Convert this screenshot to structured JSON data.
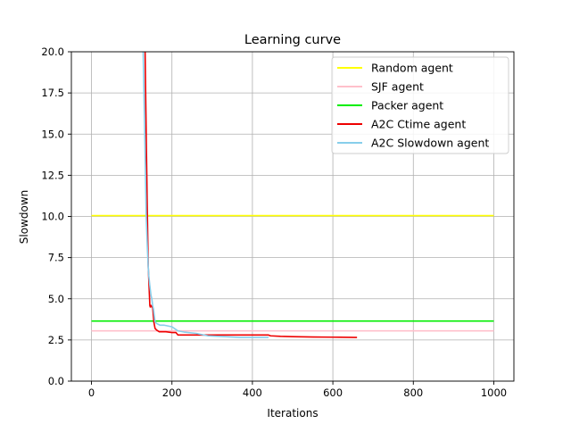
{
  "chart_data": {
    "type": "line",
    "title": "Learning curve",
    "xlabel": "Iterations",
    "ylabel": "Slowdown",
    "xlim": [
      -50,
      1050
    ],
    "ylim": [
      0,
      20
    ],
    "xticks": [
      0,
      200,
      400,
      600,
      800,
      1000
    ],
    "yticks": [
      0.0,
      2.5,
      5.0,
      7.5,
      10.0,
      12.5,
      15.0,
      17.5,
      20.0
    ],
    "xtick_labels": [
      "0",
      "200",
      "400",
      "600",
      "800",
      "1000"
    ],
    "ytick_labels": [
      "0.0",
      "2.5",
      "5.0",
      "7.5",
      "10.0",
      "12.5",
      "15.0",
      "17.5",
      "20.0"
    ],
    "grid": true,
    "legend_position": "top-right",
    "series": [
      {
        "name": "Random agent",
        "color": "#ffff00",
        "x": [
          0,
          1000
        ],
        "y": [
          10.05,
          10.05
        ]
      },
      {
        "name": "SJF agent",
        "color": "#ffc0cb",
        "x": [
          0,
          1000
        ],
        "y": [
          3.05,
          3.05
        ]
      },
      {
        "name": "Packer agent",
        "color": "#00ee00",
        "x": [
          0,
          1000
        ],
        "y": [
          3.65,
          3.65
        ]
      },
      {
        "name": "A2C Ctime agent",
        "color": "#ee0000",
        "x": [
          133,
          136,
          139,
          141,
          143,
          145,
          146,
          147,
          148,
          150,
          152,
          155,
          158,
          162,
          168,
          175,
          185,
          200,
          210,
          215,
          220,
          240,
          260,
          280,
          300,
          320,
          350,
          380,
          420,
          440,
          445,
          470,
          500,
          550,
          600,
          660
        ],
        "y": [
          20.5,
          15.0,
          10.0,
          7.0,
          5.8,
          4.6,
          4.5,
          4.6,
          4.6,
          4.5,
          4.5,
          3.6,
          3.2,
          3.1,
          3.0,
          3.0,
          3.0,
          2.95,
          2.95,
          2.8,
          2.8,
          2.8,
          2.8,
          2.8,
          2.8,
          2.8,
          2.8,
          2.8,
          2.8,
          2.8,
          2.75,
          2.72,
          2.7,
          2.68,
          2.67,
          2.65
        ]
      },
      {
        "name": "A2C Slowdown agent",
        "color": "#87ceeb",
        "x": [
          128,
          132,
          136,
          139,
          142,
          145,
          148,
          150,
          152,
          154,
          156,
          158,
          162,
          170,
          180,
          200,
          215,
          230,
          260,
          290,
          330,
          370,
          400,
          440
        ],
        "y": [
          20.5,
          15.5,
          10.0,
          8.0,
          6.5,
          5.8,
          5.2,
          5.0,
          4.6,
          4.4,
          4.0,
          3.6,
          3.5,
          3.4,
          3.4,
          3.3,
          3.05,
          2.98,
          2.9,
          2.75,
          2.7,
          2.65,
          2.65,
          2.65
        ]
      }
    ]
  }
}
